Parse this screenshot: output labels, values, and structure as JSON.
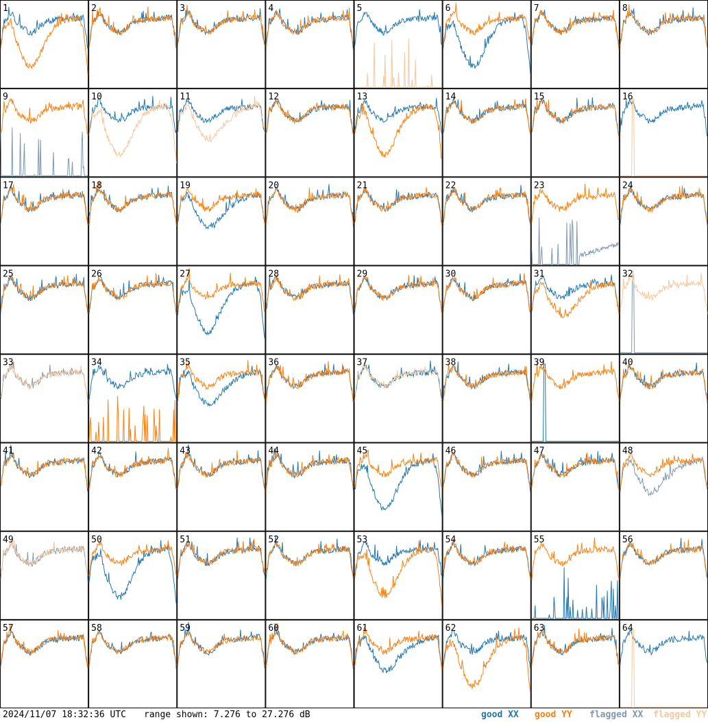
{
  "chart_data": {
    "type": "line",
    "title": "",
    "xlabel": "",
    "ylabel": "",
    "ylim": [
      7.276,
      27.276
    ],
    "grid": "8x8 small multiples",
    "panel_labels": [
      "1",
      "2",
      "3",
      "4",
      "5",
      "6",
      "7",
      "8",
      "9",
      "10",
      "11",
      "12",
      "13",
      "14",
      "15",
      "16",
      "17",
      "18",
      "19",
      "20",
      "21",
      "22",
      "23",
      "24",
      "25",
      "26",
      "27",
      "28",
      "29",
      "30",
      "31",
      "32",
      "33",
      "34",
      "35",
      "36",
      "37",
      "38",
      "39",
      "40",
      "41",
      "42",
      "43",
      "44",
      "45",
      "46",
      "47",
      "48",
      "49",
      "50",
      "51",
      "52",
      "53",
      "54",
      "55",
      "56",
      "57",
      "58",
      "59",
      "60",
      "61",
      "62",
      "63",
      "64"
    ],
    "series_styles": {
      "good XX": "#1f77b4",
      "good YY": "#ff7f0e",
      "flagged XX": "#7f98b0",
      "flagged YY": "#f8c79a"
    },
    "panel_variants": {
      "1": {
        "xx": "normal",
        "yy": "dip_deep"
      },
      "5": {
        "xx": "normal",
        "yy": "spikes_flag"
      },
      "6": {
        "xx": "dip_deep",
        "yy": "normal"
      },
      "8": {
        "xx": "normal",
        "yy": "normal"
      },
      "9": {
        "xx": "spikes_flag",
        "yy": "normal"
      },
      "10": {
        "xx": "normal",
        "yy": "flag_normal_dip"
      },
      "11": {
        "xx": "normal",
        "yy": "flag_dip"
      },
      "13": {
        "xx": "normal",
        "yy": "dip_deep"
      },
      "16": {
        "xx": "normal",
        "yy": "single_spike_flag"
      },
      "19": {
        "xx": "dip",
        "yy": "normal"
      },
      "23": {
        "xx": "flag_spikes_low",
        "yy": "normal"
      },
      "27": {
        "xx": "dip_deep",
        "yy": "normal"
      },
      "31": {
        "xx": "normal",
        "yy": "dip"
      },
      "32": {
        "xx": "flag_single_spike",
        "yy": "flag_normal"
      },
      "33": {
        "xx": "flag_normal",
        "yy": "flag_normal"
      },
      "34": {
        "xx": "normal",
        "yy": "spikes_low"
      },
      "35": {
        "xx": "dip",
        "yy": "normal"
      },
      "37": {
        "xx": "normal",
        "yy": "flag_normal"
      },
      "39": {
        "xx": "single_spike",
        "yy": "normal"
      },
      "45": {
        "xx": "dip_deep",
        "yy": "normal"
      },
      "48": {
        "xx": "flag_dip",
        "yy": "normal"
      },
      "49": {
        "xx": "flag_normal",
        "yy": "flag_normal"
      },
      "50": {
        "xx": "dip_deep",
        "yy": "normal"
      },
      "53": {
        "xx": "normal",
        "yy": "dip_deep"
      },
      "55": {
        "xx": "spikes_low",
        "yy": "normal"
      },
      "61": {
        "xx": "dip",
        "yy": "normal"
      },
      "62": {
        "xx": "normal",
        "yy": "dip_deep"
      },
      "64": {
        "xx": "normal",
        "yy": "single_spike_flag"
      }
    }
  },
  "footer": {
    "timestamp": "2024/11/07 18:32:36 UTC",
    "range_text": "range shown: 7.276 to 27.276 dB",
    "legend": {
      "good_xx": "good XX",
      "good_yy": "good YY",
      "flagged_xx": "flagged XX",
      "flagged_yy": "flagged YY"
    }
  }
}
